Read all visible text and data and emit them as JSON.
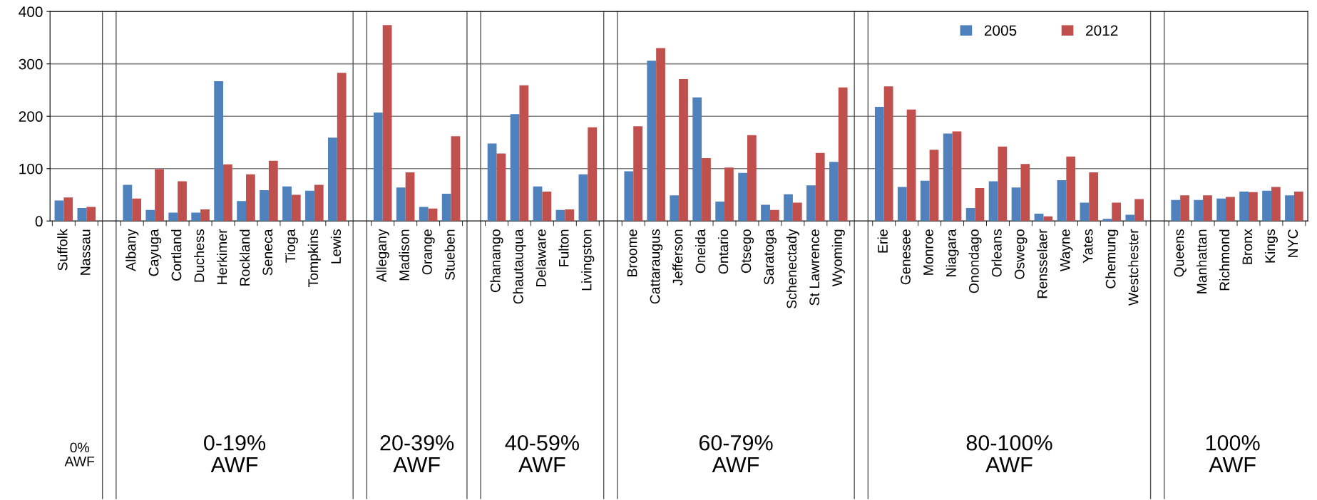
{
  "chart_data": {
    "type": "bar",
    "categories": [
      "Suffolk",
      "Nassau",
      null,
      "Albany",
      "Cayuga",
      "Cortland",
      "Duchess",
      "Herkimer",
      "Rockland",
      "Seneca",
      "Tioga",
      "Tompkins",
      "Lewis",
      null,
      "Allegany",
      "Madison",
      "Orange",
      "Stueben",
      null,
      "Chanango",
      "Chautauqua",
      "Delaware",
      "Fulton",
      "Livingston",
      null,
      "Broome",
      "Cattaraugus",
      "Jefferson",
      "Oneida",
      "Ontario",
      "Otsego",
      "Saratoga",
      "Schenectady",
      "St Lawrence",
      "Wyoming",
      null,
      "Erie",
      "Genesee",
      "Monroe",
      "Niagara",
      "Onondago",
      "Orleans",
      "Oswego",
      "Rensselaer",
      "Wayne",
      "Yates",
      "Chemung",
      "Westchester",
      null,
      "Queens",
      "Manhattan",
      "Richmond",
      "Bronx",
      "Kings",
      "NYC"
    ],
    "series": [
      {
        "name": "2005",
        "color": "#4f81bd",
        "values": [
          39,
          25,
          null,
          69,
          21,
          16,
          16,
          267,
          38,
          59,
          66,
          58,
          159,
          null,
          207,
          64,
          27,
          52,
          null,
          148,
          204,
          66,
          21,
          89,
          null,
          95,
          306,
          49,
          236,
          37,
          92,
          31,
          51,
          68,
          113,
          null,
          218,
          65,
          77,
          167,
          25,
          76,
          64,
          14,
          78,
          35,
          4,
          12,
          null,
          40,
          40,
          43,
          56,
          58,
          49
        ]
      },
      {
        "name": "2012",
        "color": "#c0504d",
        "values": [
          45,
          27,
          null,
          43,
          99,
          76,
          22,
          108,
          89,
          115,
          50,
          69,
          283,
          null,
          374,
          93,
          24,
          162,
          null,
          129,
          259,
          56,
          22,
          179,
          null,
          181,
          330,
          271,
          120,
          102,
          164,
          21,
          35,
          130,
          255,
          null,
          257,
          213,
          136,
          171,
          63,
          142,
          109,
          9,
          123,
          93,
          35,
          42,
          null,
          49,
          49,
          46,
          55,
          65,
          56
        ]
      }
    ],
    "annotations": [
      "0%\nAWF",
      "0-19%\nAWF",
      "20-39%\nAWF",
      "40-59%\nAWF",
      "60-79%\nAWF",
      "80-100%\nAWF",
      "100%\nAWF"
    ],
    "ylim": [
      0,
      400
    ],
    "yticks": [
      0,
      100,
      200,
      300,
      400
    ],
    "grid": "y",
    "legend": "top right"
  }
}
